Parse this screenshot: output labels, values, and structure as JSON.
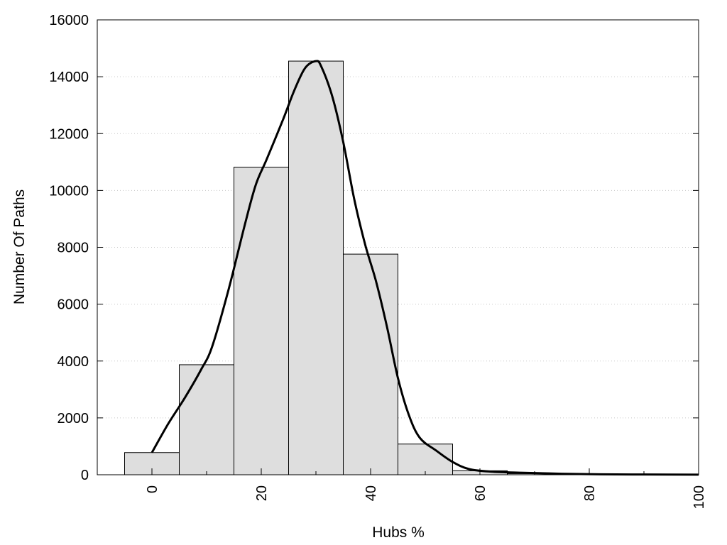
{
  "chart_data": {
    "type": "bar",
    "title": "",
    "xlabel": "Hubs %",
    "ylabel": "Number Of Paths",
    "xlim": [
      -10,
      100
    ],
    "ylim": [
      0,
      16000
    ],
    "x_ticks": [
      0,
      20,
      40,
      60,
      80,
      100
    ],
    "y_ticks": [
      0,
      2000,
      4000,
      6000,
      8000,
      10000,
      12000,
      14000,
      16000
    ],
    "grid": "horizontal dotted",
    "legend": "none",
    "bin_width": 10,
    "bins": [
      {
        "center": 0,
        "value": 780
      },
      {
        "center": 10,
        "value": 3870
      },
      {
        "center": 20,
        "value": 10820
      },
      {
        "center": 30,
        "value": 14550
      },
      {
        "center": 40,
        "value": 7760
      },
      {
        "center": 50,
        "value": 1080
      },
      {
        "center": 60,
        "value": 140
      },
      {
        "center": 70,
        "value": 40
      },
      {
        "center": 80,
        "value": 15
      },
      {
        "center": 90,
        "value": 8
      },
      {
        "center": 100,
        "value": 3
      }
    ],
    "curve": [
      {
        "x": 0,
        "y": 780
      },
      {
        "x": 3,
        "y": 1800
      },
      {
        "x": 6,
        "y": 2700
      },
      {
        "x": 9,
        "y": 3700
      },
      {
        "x": 11,
        "y": 4500
      },
      {
        "x": 14,
        "y": 6500
      },
      {
        "x": 17,
        "y": 8800
      },
      {
        "x": 19,
        "y": 10200
      },
      {
        "x": 21,
        "y": 11100
      },
      {
        "x": 24,
        "y": 12500
      },
      {
        "x": 26,
        "y": 13500
      },
      {
        "x": 28,
        "y": 14300
      },
      {
        "x": 30,
        "y": 14550
      },
      {
        "x": 31,
        "y": 14350
      },
      {
        "x": 33,
        "y": 13300
      },
      {
        "x": 35,
        "y": 11700
      },
      {
        "x": 37,
        "y": 9700
      },
      {
        "x": 39,
        "y": 8100
      },
      {
        "x": 41,
        "y": 6800
      },
      {
        "x": 43,
        "y": 5200
      },
      {
        "x": 45,
        "y": 3400
      },
      {
        "x": 47,
        "y": 2100
      },
      {
        "x": 49,
        "y": 1300
      },
      {
        "x": 52,
        "y": 850
      },
      {
        "x": 55,
        "y": 450
      },
      {
        "x": 58,
        "y": 200
      },
      {
        "x": 62,
        "y": 110
      },
      {
        "x": 68,
        "y": 70
      },
      {
        "x": 75,
        "y": 35
      },
      {
        "x": 82,
        "y": 15
      },
      {
        "x": 90,
        "y": 8
      },
      {
        "x": 100,
        "y": 3
      }
    ],
    "colors": {
      "bar_fill": "#dedede",
      "bar_stroke": "#000000",
      "curve": "#000000",
      "grid": "#c8c8c8"
    }
  }
}
